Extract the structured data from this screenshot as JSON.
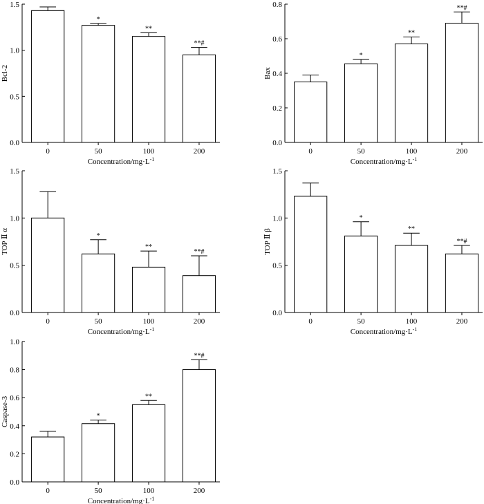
{
  "chart_data": [
    {
      "type": "bar",
      "ylabel": "Bcl-2",
      "xlabel": "Concentration/mg·L",
      "xlabel_sup": "-1",
      "categories": [
        "0",
        "50",
        "100",
        "200"
      ],
      "values": [
        1.43,
        1.27,
        1.15,
        0.95
      ],
      "errors": [
        0.04,
        0.02,
        0.04,
        0.08
      ],
      "significance": [
        "",
        "*",
        "**",
        "**#"
      ],
      "ylim": [
        0,
        1.5
      ],
      "yticks": [
        "0.0",
        "0.5",
        "1.0",
        "1.5"
      ]
    },
    {
      "type": "bar",
      "ylabel": "Bax",
      "xlabel": "Concentration/mg·L",
      "xlabel_sup": "-1",
      "categories": [
        "0",
        "50",
        "100",
        "200"
      ],
      "values": [
        0.35,
        0.455,
        0.57,
        0.69
      ],
      "errors": [
        0.04,
        0.025,
        0.04,
        0.065
      ],
      "significance": [
        "",
        "*",
        "**",
        "**#"
      ],
      "ylim": [
        0,
        0.8
      ],
      "yticks": [
        "0.0",
        "0.2",
        "0.4",
        "0.6",
        "0.8"
      ]
    },
    {
      "type": "bar",
      "ylabel": "TOP Ⅱ α",
      "xlabel": "Concentration/mg·L",
      "xlabel_sup": "-1",
      "categories": [
        "0",
        "50",
        "100",
        "200"
      ],
      "values": [
        1.0,
        0.62,
        0.48,
        0.39
      ],
      "errors": [
        0.28,
        0.15,
        0.17,
        0.21
      ],
      "significance": [
        "",
        "*",
        "**",
        "**#"
      ],
      "ylim": [
        0,
        1.5
      ],
      "yticks": [
        "0.0",
        "0.5",
        "1.0",
        "1.5"
      ]
    },
    {
      "type": "bar",
      "ylabel": "TOP Ⅱ β",
      "xlabel": "Concentration/mg·L",
      "xlabel_sup": "-1",
      "categories": [
        "0",
        "50",
        "100",
        "200"
      ],
      "values": [
        1.23,
        0.81,
        0.71,
        0.62
      ],
      "errors": [
        0.14,
        0.15,
        0.13,
        0.09
      ],
      "significance": [
        "",
        "*",
        "**",
        "**#"
      ],
      "ylim": [
        0,
        1.5
      ],
      "yticks": [
        "0.0",
        "0.5",
        "1.0",
        "1.5"
      ]
    },
    {
      "type": "bar",
      "ylabel": "Caspase-3",
      "xlabel": "Concentration/mg·L",
      "xlabel_sup": "-1",
      "categories": [
        "0",
        "50",
        "100",
        "200"
      ],
      "values": [
        0.32,
        0.415,
        0.55,
        0.8
      ],
      "errors": [
        0.04,
        0.025,
        0.03,
        0.07
      ],
      "significance": [
        "",
        "*",
        "**",
        "**#"
      ],
      "ylim": [
        0,
        1.0
      ],
      "yticks": [
        "0.0",
        "0.2",
        "0.4",
        "0.6",
        "0.8",
        "1.0"
      ]
    }
  ]
}
